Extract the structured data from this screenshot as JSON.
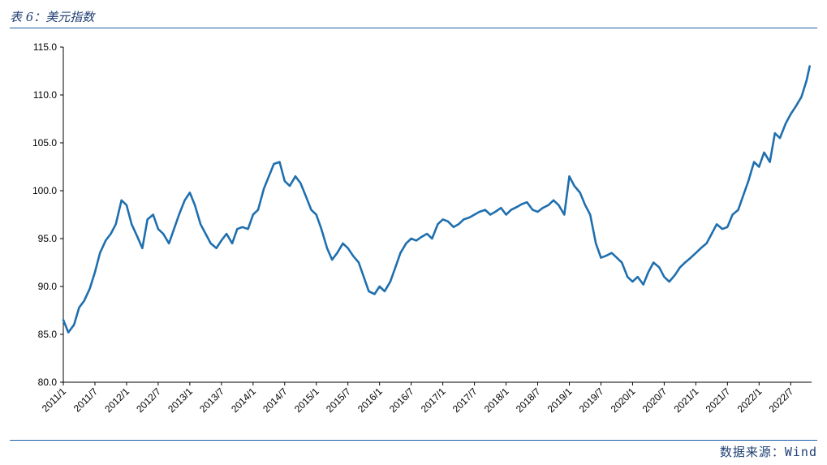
{
  "header": {
    "title": "表 6：美元指数"
  },
  "footer": {
    "source": "数据来源：Wind"
  },
  "colors": {
    "line": "#1f6fae",
    "rule": "#1f5fa8",
    "axis": "#000000"
  },
  "chart_data": {
    "type": "line",
    "title": "",
    "xlabel": "",
    "ylabel": "",
    "ylim": [
      80,
      115
    ],
    "xlim": [
      2011.0,
      2022.83
    ],
    "y_ticks": [
      "80.0",
      "85.0",
      "90.0",
      "95.0",
      "100.0",
      "105.0",
      "110.0",
      "115.0"
    ],
    "x_ticks": [
      "2011/1",
      "2011/7",
      "2012/1",
      "2012/7",
      "2013/1",
      "2013/7",
      "2014/1",
      "2014/7",
      "2015/1",
      "2015/7",
      "2016/1",
      "2016/7",
      "2017/1",
      "2017/7",
      "2018/1",
      "2018/7",
      "2019/1",
      "2019/7",
      "2020/1",
      "2020/7",
      "2021/1",
      "2021/7",
      "2022/1",
      "2022/7"
    ],
    "grid": false,
    "legend": "none",
    "series": [
      {
        "name": "",
        "x": [
          2011.0,
          2011.08,
          2011.17,
          2011.25,
          2011.33,
          2011.42,
          2011.5,
          2011.58,
          2011.67,
          2011.75,
          2011.83,
          2011.92,
          2012.0,
          2012.08,
          2012.17,
          2012.25,
          2012.33,
          2012.42,
          2012.5,
          2012.58,
          2012.67,
          2012.75,
          2012.83,
          2012.92,
          2013.0,
          2013.08,
          2013.17,
          2013.25,
          2013.33,
          2013.42,
          2013.5,
          2013.58,
          2013.67,
          2013.75,
          2013.83,
          2013.92,
          2014.0,
          2014.08,
          2014.17,
          2014.25,
          2014.33,
          2014.42,
          2014.5,
          2014.58,
          2014.67,
          2014.75,
          2014.83,
          2014.92,
          2015.0,
          2015.08,
          2015.17,
          2015.25,
          2015.33,
          2015.42,
          2015.5,
          2015.58,
          2015.67,
          2015.75,
          2015.83,
          2015.92,
          2016.0,
          2016.08,
          2016.17,
          2016.25,
          2016.33,
          2016.42,
          2016.5,
          2016.58,
          2016.67,
          2016.75,
          2016.83,
          2016.92,
          2017.0,
          2017.08,
          2017.17,
          2017.25,
          2017.33,
          2017.42,
          2017.5,
          2017.58,
          2017.67,
          2017.75,
          2017.83,
          2017.92,
          2018.0,
          2018.08,
          2018.17,
          2018.25,
          2018.33,
          2018.42,
          2018.5,
          2018.58,
          2018.67,
          2018.75,
          2018.83,
          2018.92,
          2019.0,
          2019.08,
          2019.17,
          2019.25,
          2019.33,
          2019.42,
          2019.5,
          2019.58,
          2019.67,
          2019.75,
          2019.83,
          2019.92,
          2020.0,
          2020.08,
          2020.17,
          2020.25,
          2020.33,
          2020.42,
          2020.5,
          2020.58,
          2020.67,
          2020.75,
          2020.83,
          2020.92,
          2021.0,
          2021.08,
          2021.17,
          2021.25,
          2021.33,
          2021.42,
          2021.5,
          2021.58,
          2021.67,
          2021.75,
          2021.83,
          2021.92,
          2022.0,
          2022.08,
          2022.17,
          2022.25,
          2022.33,
          2022.42,
          2022.5,
          2022.58,
          2022.67,
          2022.75,
          2022.8
        ],
        "y": [
          86.5,
          85.2,
          86.0,
          87.8,
          88.5,
          89.8,
          91.5,
          93.5,
          94.8,
          95.5,
          96.5,
          99.0,
          98.5,
          96.5,
          95.2,
          94.0,
          97.0,
          97.5,
          96.0,
          95.5,
          94.5,
          96.0,
          97.5,
          99.0,
          99.8,
          98.5,
          96.5,
          95.5,
          94.5,
          94.0,
          94.8,
          95.5,
          94.5,
          96.0,
          96.2,
          96.0,
          97.5,
          98.0,
          100.2,
          101.5,
          102.8,
          103.0,
          101.0,
          100.5,
          101.5,
          100.8,
          99.5,
          98.0,
          97.5,
          96.0,
          94.0,
          92.8,
          93.5,
          94.5,
          94.0,
          93.2,
          92.5,
          91.0,
          89.5,
          89.2,
          90.0,
          89.5,
          90.5,
          92.0,
          93.5,
          94.5,
          95.0,
          94.8,
          95.2,
          95.5,
          95.0,
          96.5,
          97.0,
          96.8,
          96.2,
          96.5,
          97.0,
          97.2,
          97.5,
          97.8,
          98.0,
          97.5,
          97.8,
          98.2,
          97.5,
          98.0,
          98.3,
          98.6,
          98.8,
          98.0,
          97.8,
          98.2,
          98.5,
          99.0,
          98.5,
          97.5,
          101.5,
          100.5,
          99.8,
          98.5,
          97.5,
          94.5,
          93.0,
          93.2,
          93.5,
          93.0,
          92.5,
          91.0,
          90.5,
          91.0,
          90.2,
          91.5,
          92.5,
          92.0,
          91.0,
          90.5,
          91.2,
          92.0,
          92.5,
          93.0,
          93.5,
          94.0,
          94.5,
          95.5,
          96.5,
          96.0,
          96.2,
          97.5,
          98.0,
          99.5,
          101.0,
          103.0,
          102.5,
          104.0,
          103.0,
          106.0,
          105.5,
          107.0,
          108.0,
          108.8,
          109.8,
          111.5,
          113.0
        ]
      }
    ]
  }
}
